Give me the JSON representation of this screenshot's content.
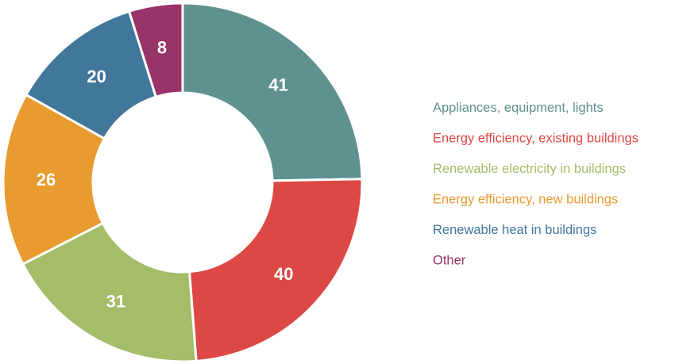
{
  "chart_data": {
    "type": "pie",
    "variant": "donut",
    "title": "",
    "legend_position": "right",
    "slices": [
      {
        "label": "Appliances, equipment, lights",
        "value": 41,
        "color": "#5e918f"
      },
      {
        "label": "Energy efficiency, existing buildings",
        "value": 40,
        "color": "#dc4843"
      },
      {
        "label": "Renewable electricity in buildings",
        "value": 31,
        "color": "#a5bd68"
      },
      {
        "label": "Energy efficiency, new buildings",
        "value": 26,
        "color": "#e89b2f"
      },
      {
        "label": "Renewable heat in buildings",
        "value": 20,
        "color": "#41779b"
      },
      {
        "label": "Other",
        "value": 8,
        "color": "#983468"
      }
    ]
  }
}
